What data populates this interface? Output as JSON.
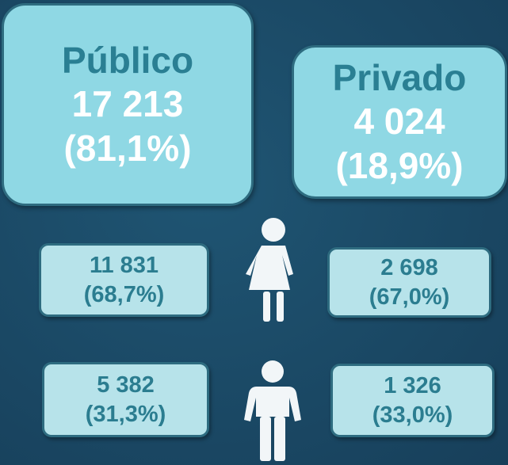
{
  "publico": {
    "label": "Público",
    "total": "17 213",
    "share": "(81,1%)"
  },
  "privado": {
    "label": "Privado",
    "total": "4 024",
    "share": "(18,9%)"
  },
  "female": {
    "publico": {
      "count": "11 831",
      "share": "(68,7%)"
    },
    "privado": {
      "count": "2 698",
      "share": "(67,0%)"
    }
  },
  "male": {
    "publico": {
      "count": "5 382",
      "share": "(31,3%)"
    },
    "privado": {
      "count": "1 326",
      "share": "(33,0%)"
    }
  }
}
